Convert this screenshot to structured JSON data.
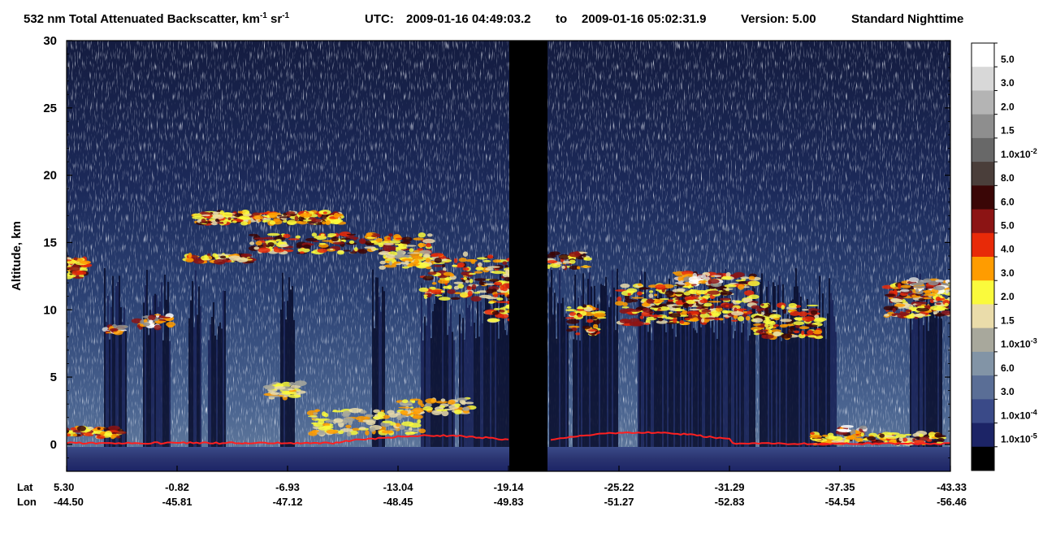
{
  "title": {
    "main": "532 nm Total Attenuated Backscatter, km",
    "main_sup1": "-1",
    "main_mid": " sr",
    "main_sup2": "-1",
    "utc_label": "UTC:",
    "utc_start": "2009-01-16 04:49:03.2",
    "to": "to",
    "utc_end": "2009-01-16 05:02:31.9",
    "version": "Version: 5.00",
    "mode": "Standard  Nighttime"
  },
  "chart_data": {
    "type": "heatmap",
    "ylabel": "Altitude, km",
    "ylim": [
      -2,
      30
    ],
    "y_ticks": [
      0,
      5,
      10,
      15,
      20,
      25,
      30
    ],
    "x_row_labels": [
      "Lat",
      "Lon"
    ],
    "x_ticks": [
      {
        "lat": "5.30",
        "lon": "-44.50"
      },
      {
        "lat": "-0.82",
        "lon": "-45.81"
      },
      {
        "lat": "-6.93",
        "lon": "-47.12"
      },
      {
        "lat": "-13.04",
        "lon": "-48.45"
      },
      {
        "lat": "-19.14",
        "lon": "-49.83"
      },
      {
        "lat": "-25.22",
        "lon": "-51.27"
      },
      {
        "lat": "-31.29",
        "lon": "-52.83"
      },
      {
        "lat": "-37.35",
        "lon": "-54.54"
      },
      {
        "lat": "-43.33",
        "lon": "-56.46"
      }
    ],
    "colorbar": [
      {
        "label": "5.0",
        "color": "#ffffff"
      },
      {
        "label": "3.0",
        "color": "#d8d8d8"
      },
      {
        "label": "2.0",
        "color": "#b4b4b4"
      },
      {
        "label": "1.5",
        "color": "#8e8e8e"
      },
      {
        "label": "1.0x10",
        "sup": "-2",
        "color": "#686868"
      },
      {
        "label": "8.0",
        "color": "#4a3e3a"
      },
      {
        "label": "6.0",
        "color": "#3a0606"
      },
      {
        "label": "5.0",
        "color": "#8c1414"
      },
      {
        "label": "4.0",
        "color": "#e82a08"
      },
      {
        "label": "3.0",
        "color": "#ff9c00"
      },
      {
        "label": "2.0",
        "color": "#fafa3c"
      },
      {
        "label": "1.5",
        "color": "#eadcaa"
      },
      {
        "label": "1.0x10",
        "sup": "-3",
        "color": "#a8a89c"
      },
      {
        "label": "6.0",
        "color": "#8294a6"
      },
      {
        "label": "3.0",
        "color": "#5a6e96"
      },
      {
        "label": "1.0x10",
        "sup": "-4",
        "color": "#3a4a88"
      },
      {
        "label": "1.0x10",
        "sup": "-5",
        "color": "#1c2466"
      },
      {
        "label": "",
        "color": "#000000"
      }
    ],
    "surface_line_color": "#ff2020"
  }
}
